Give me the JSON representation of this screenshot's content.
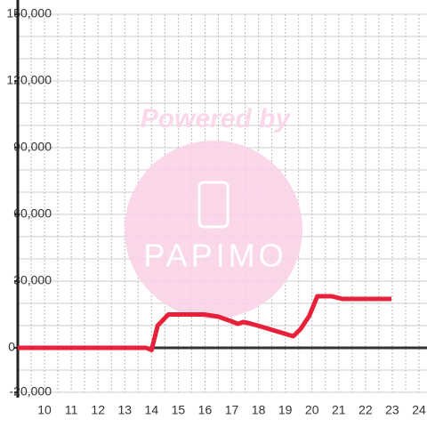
{
  "chart_data": {
    "type": "line",
    "watermark": {
      "top": "Powered by",
      "logo": "PAPIMO"
    },
    "x": [
      9,
      13.8,
      14.0,
      14.23,
      14.63,
      15.97,
      16.5,
      16.97,
      17.23,
      17.43,
      17.6,
      17.97,
      18.97,
      19.3,
      19.57,
      19.9,
      20.2,
      20.73,
      21.13,
      22.97
    ],
    "series": [
      {
        "color": "#e8203a",
        "values": [
          0,
          0,
          -1000,
          10000,
          15000,
          15000,
          14000,
          12000,
          10800,
          11600,
          11200,
          10000,
          6400,
          5200,
          8400,
          14400,
          23200,
          23200,
          22000,
          22000
        ]
      }
    ],
    "xlim": [
      9,
      24.3
    ],
    "xticks": [
      10,
      11,
      12,
      13,
      14,
      15,
      16,
      17,
      18,
      19,
      20,
      21,
      22,
      23,
      24
    ],
    "xminor_ticks": [
      9.5,
      10.5,
      11.5,
      12.5,
      13.5,
      14.5,
      15.5,
      16.5,
      17.5,
      18.5,
      19.5,
      20.5,
      21.5,
      22.5,
      23.5
    ],
    "ylim": [
      -20000,
      150000
    ],
    "yticks": [
      {
        "value": -20000,
        "label": "-20,000"
      },
      0,
      {
        "value": 30000,
        "label": "30,000"
      },
      {
        "value": 60000,
        "label": "60,000"
      },
      {
        "value": 90000,
        "label": "90,000"
      },
      {
        "value": 120000,
        "label": "120,000"
      },
      {
        "value": 150000,
        "label": "150,000"
      }
    ],
    "yminor_ticks": [
      -10000,
      10000,
      20000,
      40000,
      50000,
      70000,
      80000,
      100000,
      110000,
      130000,
      140000
    ],
    "grid": true
  }
}
